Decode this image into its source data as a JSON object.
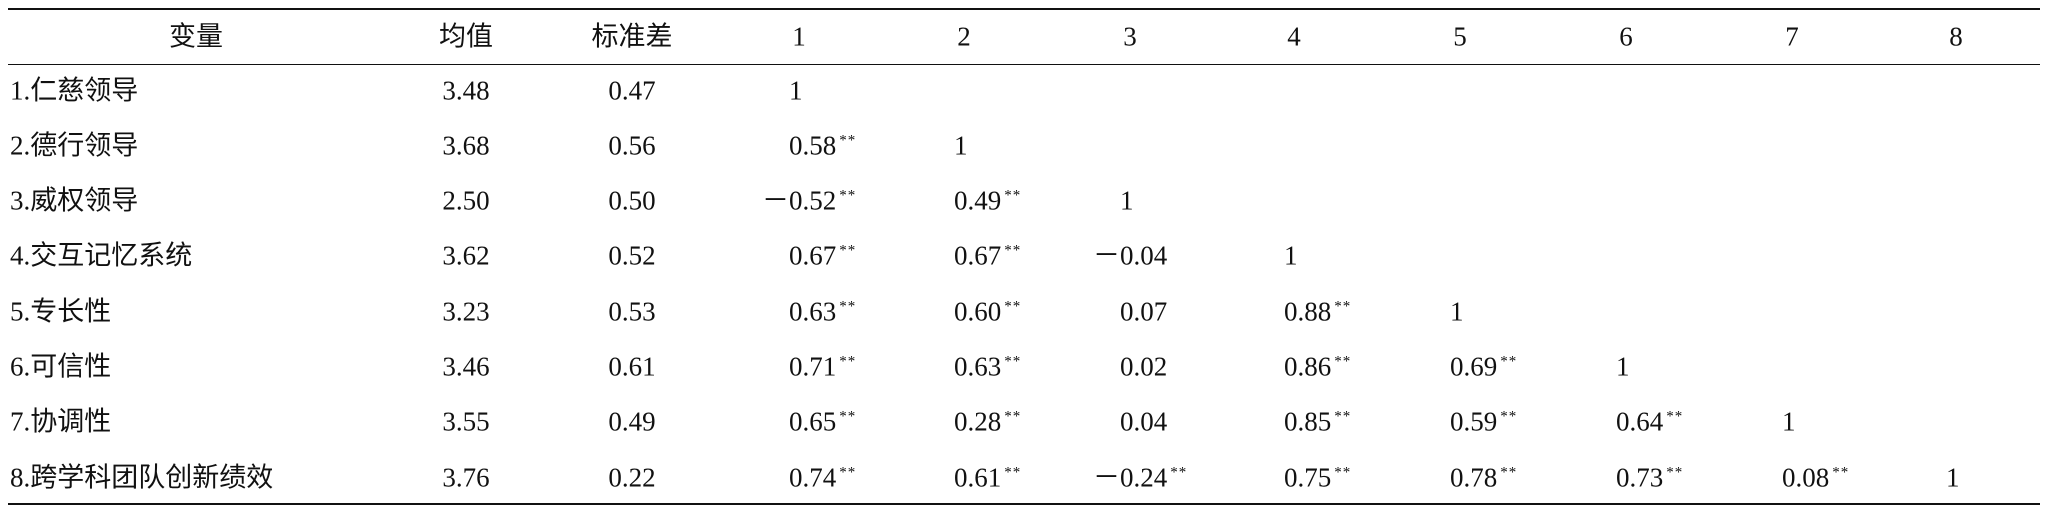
{
  "table": {
    "header": [
      "变量",
      "均值",
      "标准差",
      "1",
      "2",
      "3",
      "4",
      "5",
      "6",
      "7",
      "8"
    ],
    "rows": [
      [
        "1.仁慈领导",
        "3.48",
        "0.47",
        "1"
      ],
      [
        "2.德行领导",
        "3.68",
        "0.56",
        [
          "0.58",
          "**"
        ],
        "1"
      ],
      [
        "3.威权领导",
        "2.50",
        "0.50",
        [
          "－0.52",
          "**"
        ],
        [
          "0.49",
          "**"
        ],
        "1"
      ],
      [
        "4.交互记忆系统",
        "3.62",
        "0.52",
        [
          "0.67",
          "**"
        ],
        [
          "0.67",
          "**"
        ],
        "－0.04",
        "1"
      ],
      [
        "5.专长性",
        "3.23",
        "0.53",
        [
          "0.63",
          "**"
        ],
        [
          "0.60",
          "**"
        ],
        "0.07",
        [
          "0.88",
          "**"
        ],
        "1"
      ],
      [
        "6.可信性",
        "3.46",
        "0.61",
        [
          "0.71",
          "**"
        ],
        [
          "0.63",
          "**"
        ],
        "0.02",
        [
          "0.86",
          "**"
        ],
        [
          "0.69",
          "**"
        ],
        "1"
      ],
      [
        "7.协调性",
        "3.55",
        "0.49",
        [
          "0.65",
          "**"
        ],
        [
          "0.28",
          "**"
        ],
        "0.04",
        [
          "0.85",
          "**"
        ],
        [
          "0.59",
          "**"
        ],
        [
          "0.64",
          "**"
        ],
        "1"
      ],
      [
        "8.跨学科团队创新绩效",
        "3.76",
        "0.22",
        [
          "0.74",
          "**"
        ],
        [
          "0.61",
          "**"
        ],
        [
          "－0.24",
          "**"
        ],
        [
          "0.75",
          "**"
        ],
        [
          "0.78",
          "**"
        ],
        [
          "0.73",
          "**"
        ],
        [
          "0.08",
          "**"
        ],
        "1"
      ]
    ]
  }
}
